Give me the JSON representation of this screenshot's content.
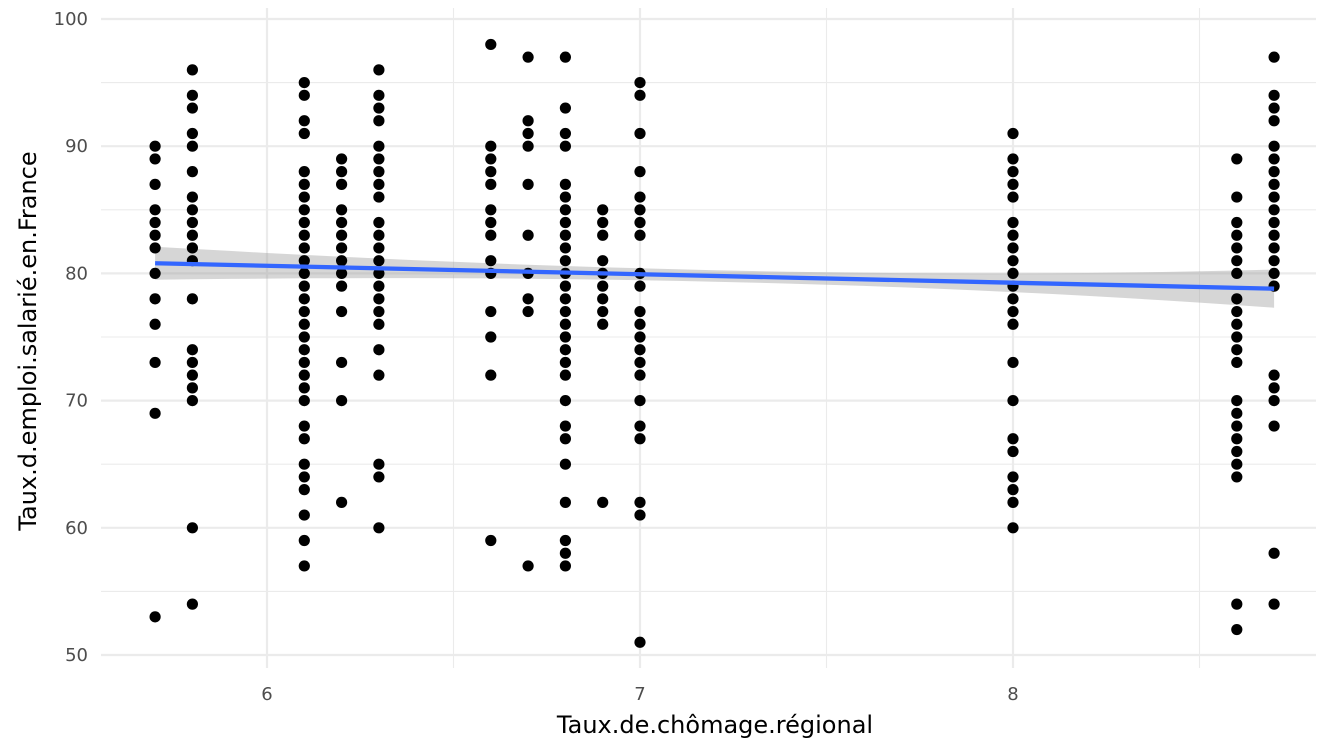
{
  "chart_data": {
    "type": "scatter",
    "title": "",
    "xlabel": "Taux.de.chômage.régional",
    "ylabel": "Taux.d.emploi.salarié.en.France",
    "xlim": [
      5.55,
      8.8
    ],
    "ylim": [
      48.8,
      100.5
    ],
    "x_ticks": [
      6,
      7,
      8
    ],
    "x_minor_ticks": [
      5.5,
      6.5,
      7.5,
      8.5
    ],
    "y_ticks": [
      50,
      60,
      70,
      80,
      90,
      100
    ],
    "y_minor_ticks": [
      55,
      65,
      75,
      85,
      95
    ],
    "grid": true,
    "legend": "none",
    "point_color": "#000000",
    "trend": {
      "method": "linear",
      "color": "#3366ff",
      "band_color": "#999999",
      "x": [
        5.7,
        8.7
      ],
      "y": [
        80.8,
        78.8
      ],
      "band_halfwidth_at_ends": [
        1.3,
        1.5
      ],
      "band_halfwidth_middle": 0.45
    },
    "points_by_x": [
      {
        "x": 5.7,
        "y": [
          90,
          89,
          87,
          85,
          84,
          83,
          82,
          80,
          78,
          76,
          73,
          69,
          53
        ]
      },
      {
        "x": 5.8,
        "y": [
          96,
          94,
          93,
          91,
          90,
          88,
          86,
          85,
          84,
          83,
          82,
          81,
          78,
          74,
          73,
          72,
          71,
          70,
          60,
          54
        ]
      },
      {
        "x": 6.1,
        "y": [
          95,
          94,
          92,
          91,
          88,
          87,
          86,
          85,
          84,
          83,
          82,
          81,
          80,
          79,
          78,
          77,
          76,
          75,
          74,
          73,
          72,
          71,
          70,
          68,
          67,
          65,
          64,
          63,
          61,
          59,
          57
        ]
      },
      {
        "x": 6.2,
        "y": [
          89,
          88,
          87,
          85,
          84,
          83,
          82,
          81,
          80,
          79,
          77,
          73,
          70,
          62
        ]
      },
      {
        "x": 6.3,
        "y": [
          96,
          94,
          93,
          92,
          90,
          89,
          88,
          87,
          86,
          84,
          83,
          82,
          81,
          80,
          79,
          78,
          77,
          76,
          74,
          72,
          65,
          64,
          60
        ]
      },
      {
        "x": 6.6,
        "y": [
          98,
          90,
          89,
          88,
          87,
          85,
          84,
          83,
          81,
          80,
          77,
          75,
          72,
          59
        ]
      },
      {
        "x": 6.7,
        "y": [
          97,
          92,
          91,
          90,
          87,
          83,
          80,
          78,
          77,
          57
        ]
      },
      {
        "x": 6.8,
        "y": [
          97,
          93,
          91,
          90,
          87,
          86,
          85,
          84,
          83,
          82,
          81,
          80,
          79,
          78,
          77,
          76,
          75,
          74,
          73,
          72,
          70,
          68,
          67,
          65,
          62,
          59,
          58,
          57
        ]
      },
      {
        "x": 6.9,
        "y": [
          85,
          84,
          83,
          81,
          80,
          79,
          78,
          77,
          76,
          62
        ]
      },
      {
        "x": 7.0,
        "y": [
          95,
          94,
          91,
          88,
          86,
          85,
          84,
          83,
          80,
          79,
          77,
          76,
          75,
          74,
          73,
          72,
          70,
          68,
          67,
          62,
          61,
          51
        ]
      },
      {
        "x": 8.0,
        "y": [
          91,
          89,
          88,
          87,
          86,
          84,
          83,
          82,
          81,
          80,
          79,
          78,
          77,
          76,
          73,
          70,
          67,
          66,
          64,
          63,
          62,
          60
        ]
      },
      {
        "x": 8.6,
        "y": [
          89,
          86,
          84,
          83,
          82,
          81,
          80,
          78,
          77,
          76,
          75,
          74,
          73,
          70,
          69,
          68,
          67,
          66,
          65,
          64,
          54,
          52
        ]
      },
      {
        "x": 8.7,
        "y": [
          97,
          94,
          93,
          92,
          90,
          89,
          88,
          87,
          86,
          85,
          84,
          83,
          82,
          81,
          80,
          79,
          72,
          71,
          70,
          68,
          58,
          54
        ]
      }
    ]
  }
}
